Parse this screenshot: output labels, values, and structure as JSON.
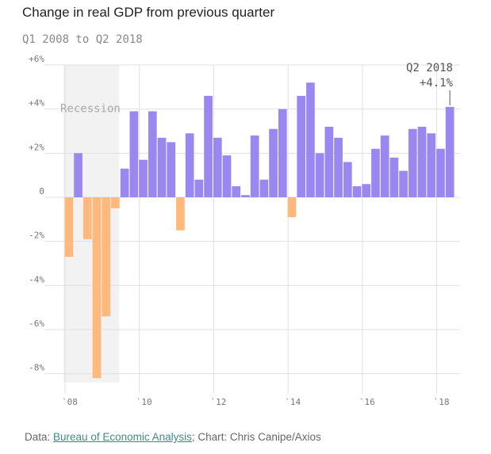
{
  "chart_data": {
    "type": "bar",
    "title": "Change in real GDP from previous quarter",
    "subtitle": "Q1 2008 to Q2 2018",
    "ylim": [
      -8.4,
      6
    ],
    "y_ticks": [
      {
        "value": 6,
        "label": "+6%"
      },
      {
        "value": 4,
        "label": "+4%"
      },
      {
        "value": 2,
        "label": "+2%"
      },
      {
        "value": 0,
        "label": "0"
      },
      {
        "value": -2,
        "label": "-2%"
      },
      {
        "value": -4,
        "label": "-4%"
      },
      {
        "value": -6,
        "label": "-6%"
      },
      {
        "value": -8,
        "label": "-8%"
      }
    ],
    "x_ticks": [
      {
        "year": 2008,
        "label": "`08"
      },
      {
        "year": 2010,
        "label": "`10"
      },
      {
        "year": 2012,
        "label": "`12"
      },
      {
        "year": 2014,
        "label": "`14"
      },
      {
        "year": 2016,
        "label": "`16"
      },
      {
        "year": 2018,
        "label": "`18"
      }
    ],
    "start": {
      "year": 2008,
      "quarter": 1
    },
    "values": [
      -2.7,
      2.0,
      -1.9,
      -8.2,
      -5.4,
      -0.5,
      1.3,
      3.9,
      1.7,
      3.9,
      2.7,
      2.5,
      -1.5,
      2.9,
      0.8,
      4.6,
      2.7,
      1.9,
      0.5,
      0.1,
      2.8,
      0.8,
      3.1,
      4.0,
      -0.9,
      4.6,
      5.2,
      2.0,
      3.2,
      2.7,
      1.6,
      0.5,
      0.6,
      2.2,
      2.8,
      1.8,
      1.2,
      3.1,
      3.2,
      2.9,
      2.2,
      4.1
    ],
    "colors": {
      "positive": "#9b87f0",
      "negative": "#ffb97d",
      "recession": "#f2f2f2",
      "grid": "#e0e0e0"
    },
    "recession": {
      "label": "Recession",
      "start_index": 0,
      "end_index": 5
    },
    "annotation": {
      "line1": "Q2 2018",
      "line2": "+4.1%",
      "index": 41
    }
  },
  "footer": {
    "data_prefix": "Data: ",
    "source_link": "Bureau of Economic Analysis",
    "separator": ";",
    "credit": " Chart: Chris Canipe/Axios"
  }
}
